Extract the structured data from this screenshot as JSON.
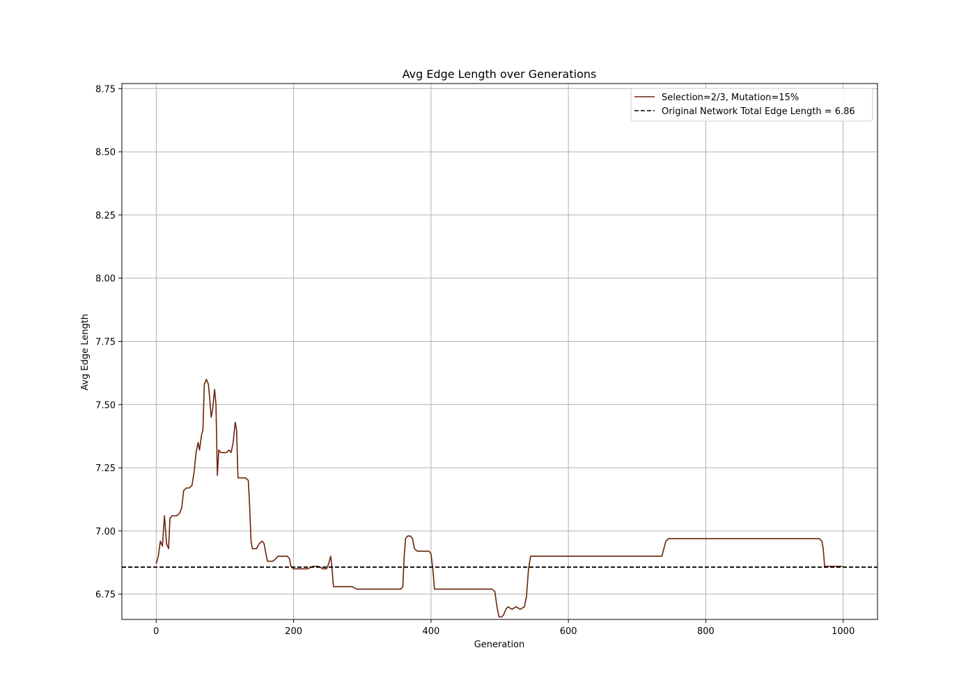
{
  "chart_data": {
    "type": "line",
    "title": "Avg Edge Length over Generations",
    "xlabel": "Generation",
    "ylabel": "Avg Edge Length",
    "xlim": [
      -50,
      1050
    ],
    "ylim": [
      6.65,
      8.77
    ],
    "xticks": [
      0,
      200,
      400,
      600,
      800,
      1000
    ],
    "xtick_labels": [
      "0",
      "200",
      "400",
      "600",
      "800",
      "1000"
    ],
    "yticks": [
      6.75,
      7.0,
      7.25,
      7.5,
      7.75,
      8.0,
      8.25,
      8.5,
      8.75
    ],
    "ytick_labels": [
      "6.75",
      "7.00",
      "7.25",
      "7.50",
      "7.75",
      "8.00",
      "8.25",
      "8.50",
      "8.75"
    ],
    "grid": true,
    "legend_position": "top-right",
    "series": [
      {
        "name": "Selection=2/3, Mutation=15%",
        "color": "#6b2208",
        "line_style": "solid",
        "points": [
          [
            0,
            6.87
          ],
          [
            3,
            6.9
          ],
          [
            6,
            6.96
          ],
          [
            9,
            6.94
          ],
          [
            12,
            7.06
          ],
          [
            15,
            6.95
          ],
          [
            18,
            6.93
          ],
          [
            20,
            7.05
          ],
          [
            23,
            7.06
          ],
          [
            26,
            7.06
          ],
          [
            30,
            7.06
          ],
          [
            34,
            7.07
          ],
          [
            37,
            7.09
          ],
          [
            40,
            7.16
          ],
          [
            44,
            7.17
          ],
          [
            48,
            7.17
          ],
          [
            52,
            7.18
          ],
          [
            55,
            7.23
          ],
          [
            58,
            7.31
          ],
          [
            61,
            7.35
          ],
          [
            63,
            7.32
          ],
          [
            66,
            7.38
          ],
          [
            68,
            7.4
          ],
          [
            70,
            7.58
          ],
          [
            73,
            7.6
          ],
          [
            76,
            7.58
          ],
          [
            78,
            7.52
          ],
          [
            80,
            7.45
          ],
          [
            82,
            7.48
          ],
          [
            85,
            7.56
          ],
          [
            87,
            7.5
          ],
          [
            89,
            7.22
          ],
          [
            91,
            7.32
          ],
          [
            94,
            7.31
          ],
          [
            98,
            7.31
          ],
          [
            102,
            7.31
          ],
          [
            106,
            7.32
          ],
          [
            109,
            7.31
          ],
          [
            112,
            7.35
          ],
          [
            115,
            7.43
          ],
          [
            117,
            7.4
          ],
          [
            119,
            7.21
          ],
          [
            122,
            7.21
          ],
          [
            126,
            7.21
          ],
          [
            130,
            7.21
          ],
          [
            134,
            7.2
          ],
          [
            136,
            7.1
          ],
          [
            138,
            6.96
          ],
          [
            140,
            6.93
          ],
          [
            143,
            6.93
          ],
          [
            146,
            6.93
          ],
          [
            150,
            6.95
          ],
          [
            154,
            6.96
          ],
          [
            157,
            6.95
          ],
          [
            159,
            6.92
          ],
          [
            162,
            6.88
          ],
          [
            166,
            6.88
          ],
          [
            170,
            6.88
          ],
          [
            174,
            6.89
          ],
          [
            177,
            6.9
          ],
          [
            182,
            6.9
          ],
          [
            187,
            6.9
          ],
          [
            191,
            6.9
          ],
          [
            194,
            6.89
          ],
          [
            196,
            6.86
          ],
          [
            200,
            6.85
          ],
          [
            205,
            6.85
          ],
          [
            212,
            6.85
          ],
          [
            220,
            6.85
          ],
          [
            228,
            6.86
          ],
          [
            236,
            6.86
          ],
          [
            243,
            6.85
          ],
          [
            248,
            6.85
          ],
          [
            251,
            6.87
          ],
          [
            254,
            6.9
          ],
          [
            256,
            6.85
          ],
          [
            258,
            6.78
          ],
          [
            262,
            6.78
          ],
          [
            270,
            6.78
          ],
          [
            278,
            6.78
          ],
          [
            285,
            6.78
          ],
          [
            292,
            6.77
          ],
          [
            300,
            6.77
          ],
          [
            310,
            6.77
          ],
          [
            320,
            6.77
          ],
          [
            330,
            6.77
          ],
          [
            340,
            6.77
          ],
          [
            350,
            6.77
          ],
          [
            356,
            6.77
          ],
          [
            359,
            6.78
          ],
          [
            361,
            6.9
          ],
          [
            363,
            6.97
          ],
          [
            366,
            6.98
          ],
          [
            370,
            6.98
          ],
          [
            373,
            6.97
          ],
          [
            376,
            6.93
          ],
          [
            380,
            6.92
          ],
          [
            386,
            6.92
          ],
          [
            392,
            6.92
          ],
          [
            397,
            6.92
          ],
          [
            400,
            6.91
          ],
          [
            403,
            6.84
          ],
          [
            405,
            6.77
          ],
          [
            410,
            6.77
          ],
          [
            420,
            6.77
          ],
          [
            430,
            6.77
          ],
          [
            440,
            6.77
          ],
          [
            450,
            6.77
          ],
          [
            460,
            6.77
          ],
          [
            470,
            6.77
          ],
          [
            480,
            6.77
          ],
          [
            489,
            6.77
          ],
          [
            493,
            6.76
          ],
          [
            496,
            6.7
          ],
          [
            499,
            6.66
          ],
          [
            503,
            6.66
          ],
          [
            506,
            6.67
          ],
          [
            509,
            6.69
          ],
          [
            512,
            6.7
          ],
          [
            518,
            6.69
          ],
          [
            524,
            6.7
          ],
          [
            530,
            6.69
          ],
          [
            536,
            6.7
          ],
          [
            539,
            6.74
          ],
          [
            542,
            6.85
          ],
          [
            545,
            6.9
          ],
          [
            550,
            6.9
          ],
          [
            560,
            6.9
          ],
          [
            570,
            6.9
          ],
          [
            580,
            6.9
          ],
          [
            590,
            6.9
          ],
          [
            600,
            6.9
          ],
          [
            610,
            6.9
          ],
          [
            620,
            6.9
          ],
          [
            630,
            6.9
          ],
          [
            640,
            6.9
          ],
          [
            650,
            6.9
          ],
          [
            660,
            6.9
          ],
          [
            670,
            6.9
          ],
          [
            680,
            6.9
          ],
          [
            690,
            6.9
          ],
          [
            700,
            6.9
          ],
          [
            710,
            6.9
          ],
          [
            720,
            6.9
          ],
          [
            730,
            6.9
          ],
          [
            736,
            6.9
          ],
          [
            739,
            6.93
          ],
          [
            742,
            6.96
          ],
          [
            746,
            6.97
          ],
          [
            760,
            6.97
          ],
          [
            780,
            6.97
          ],
          [
            800,
            6.97
          ],
          [
            820,
            6.97
          ],
          [
            840,
            6.97
          ],
          [
            860,
            6.97
          ],
          [
            880,
            6.97
          ],
          [
            900,
            6.97
          ],
          [
            920,
            6.97
          ],
          [
            940,
            6.97
          ],
          [
            955,
            6.97
          ],
          [
            965,
            6.97
          ],
          [
            969,
            6.96
          ],
          [
            971,
            6.93
          ],
          [
            973,
            6.86
          ],
          [
            976,
            6.86
          ],
          [
            980,
            6.86
          ],
          [
            985,
            6.86
          ],
          [
            990,
            6.86
          ],
          [
            995,
            6.86
          ],
          [
            999,
            6.86
          ]
        ]
      },
      {
        "name": "Original Network Total Edge Length = 6.86",
        "color": "#000000",
        "line_style": "dashed",
        "y_constant": 6.857
      }
    ]
  }
}
